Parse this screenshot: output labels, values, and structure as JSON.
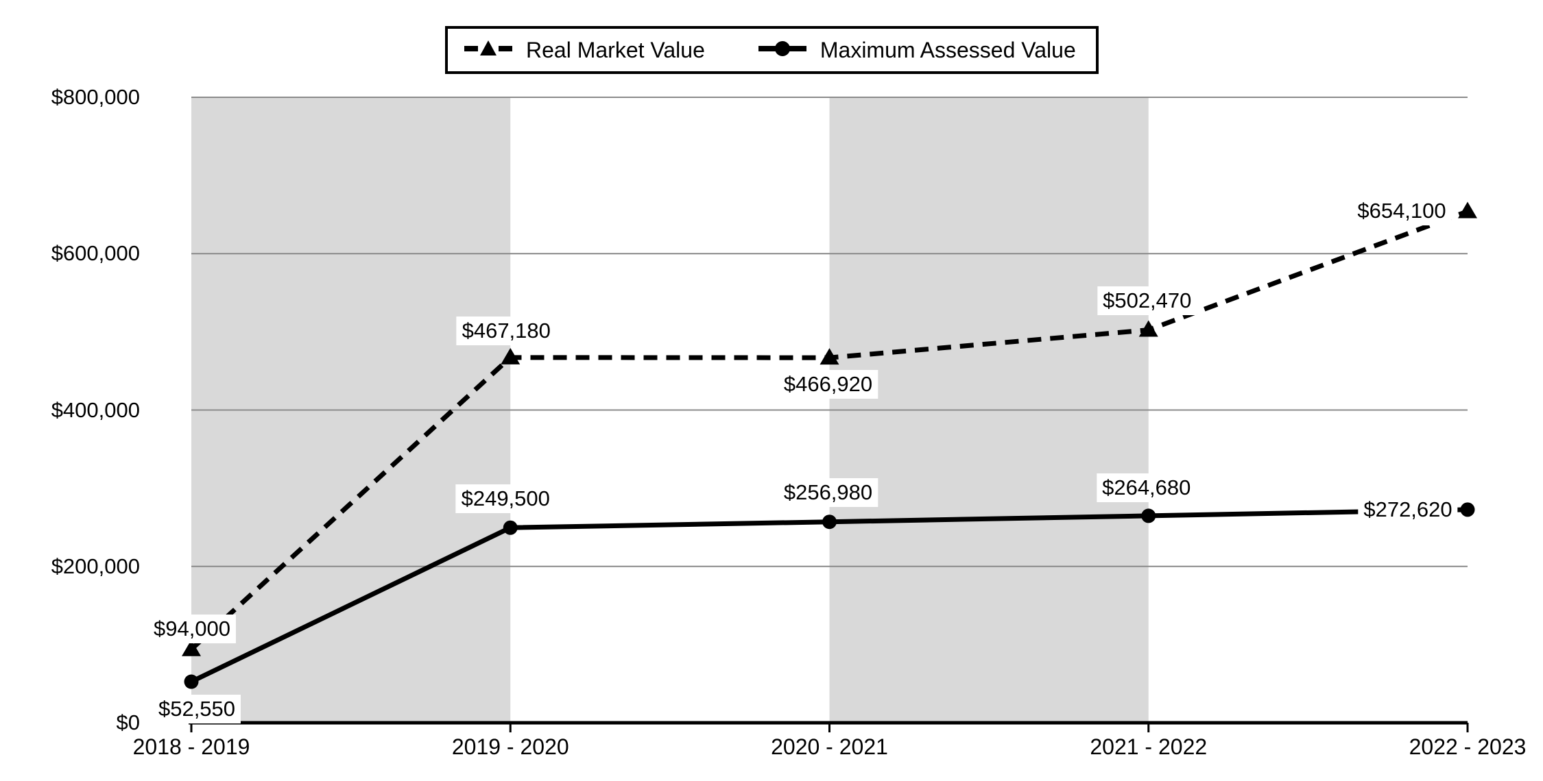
{
  "chart_data": {
    "type": "line",
    "title": "",
    "categories": [
      "2018 - 2019",
      "2019 - 2020",
      "2020 - 2021",
      "2021 - 2022",
      "2022 - 2023"
    ],
    "series": [
      {
        "name": "Real Market Value",
        "line_style": "dashed",
        "marker": "triangle",
        "values": [
          94000,
          467180,
          466920,
          502470,
          654100
        ],
        "point_labels": [
          "$94,000",
          "$467,180",
          "$466,920",
          "$502,470",
          "$654,100"
        ]
      },
      {
        "name": "Maximum Assessed Value",
        "line_style": "solid",
        "marker": "circle",
        "values": [
          52550,
          249500,
          256980,
          264680,
          272620
        ],
        "point_labels": [
          "$52,550",
          "$249,500",
          "$256,980",
          "$264,680",
          "$272,620"
        ]
      }
    ],
    "ylim": [
      0,
      800000
    ],
    "ytick_step": 200000,
    "ytick_labels": [
      "$0",
      "$200,000",
      "$400,000",
      "$600,000",
      "$800,000"
    ],
    "grid": "horizontal",
    "legend_position": "top-center",
    "shaded_column_pairs": [
      [
        0,
        1
      ],
      [
        2,
        3
      ]
    ],
    "colors": {
      "line": "#000000",
      "band": "#d9d9d9",
      "gridline": "#8a8a8a",
      "axis": "#000000",
      "text": "#000000",
      "label_bg": "#ffffff",
      "background": "#ffffff"
    }
  }
}
